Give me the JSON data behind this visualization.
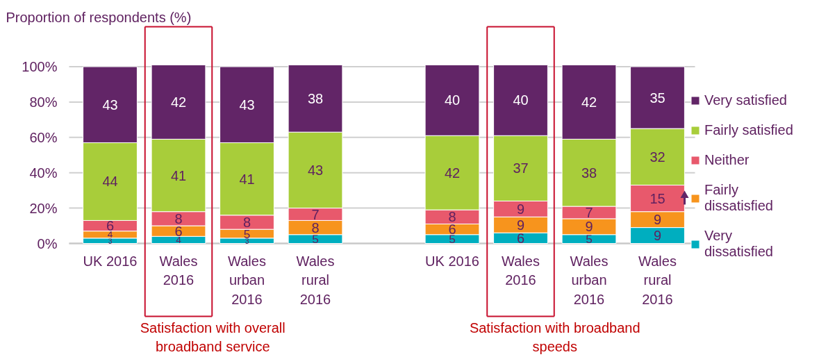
{
  "chart_data": {
    "type": "bar",
    "stacked": true,
    "ylabel": "Proportion of respondents (%)",
    "categories": [
      "UK 2016",
      "Wales 2016",
      "Wales urban 2016",
      "Wales rural 2016",
      null,
      "UK 2016",
      "Wales 2016",
      "Wales urban 2016",
      "Wales rural 2016"
    ],
    "series": [
      {
        "name": "Very dissatisfied",
        "color": "#00aebf",
        "values": [
          3,
          4,
          3,
          5,
          null,
          5,
          6,
          5,
          9
        ]
      },
      {
        "name": "Fairly dissatisfied",
        "color": "#f7941d",
        "values": [
          4,
          6,
          5,
          8,
          null,
          6,
          9,
          9,
          9
        ]
      },
      {
        "name": "Neither",
        "color": "#e8596c",
        "values": [
          6,
          8,
          8,
          7,
          null,
          8,
          9,
          7,
          15
        ]
      },
      {
        "name": "Fairly satisfied",
        "color": "#a8cd3a",
        "values": [
          44,
          41,
          41,
          43,
          null,
          42,
          37,
          38,
          32
        ]
      },
      {
        "name": "Very satisfied",
        "color": "#622567",
        "values": [
          43,
          42,
          43,
          38,
          null,
          40,
          40,
          42,
          35
        ]
      }
    ],
    "ylim": [
      0,
      101
    ],
    "yticks": [
      {
        "value": 0,
        "label": "0%"
      },
      {
        "value": 20,
        "label": "20%"
      },
      {
        "value": 40,
        "label": "40%"
      },
      {
        "value": 60,
        "label": "60%"
      },
      {
        "value": 80,
        "label": "80%"
      },
      {
        "value": 100,
        "label": "100%"
      }
    ],
    "grid": "y",
    "legend": "right",
    "data_labels": true,
    "annotations": [
      "Satisfaction with overall broadband service",
      "Satisfaction with broadband speeds"
    ]
  }
}
